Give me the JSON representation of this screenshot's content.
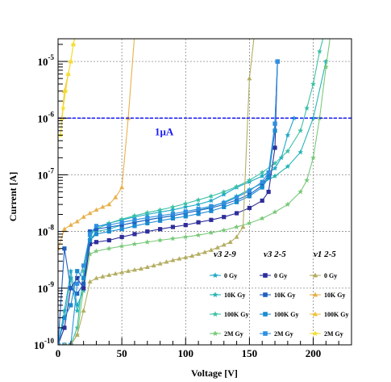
{
  "chart_data": {
    "type": "line",
    "xlabel": "Voltage [V]",
    "ylabel": "Current [A]",
    "xlim": [
      0,
      230
    ],
    "ylim_log10": [
      -10,
      -4.6
    ],
    "y_scale": "log",
    "x_ticks": [
      "0",
      "50",
      "100",
      "150",
      "200"
    ],
    "y_ticks": [
      "10^-10",
      "10^-9",
      "10^-8",
      "10^-7",
      "10^-6",
      "10^-5"
    ],
    "grid": true,
    "reference_line": {
      "y": 1e-06,
      "label": "1μA",
      "color": "#1a1aff"
    },
    "legend_columns": [
      {
        "heading": "v3 2-9",
        "entries": [
          "0 Gy",
          "10K Gy",
          "100K Gy",
          "2M Gy"
        ]
      },
      {
        "heading": "v3 2-5",
        "entries": [
          "0 Gy",
          "10K Gy",
          "100K Gy",
          "2M Gy"
        ]
      },
      {
        "heading": "v1 2-5",
        "entries": [
          "0 Gy",
          "10K Gy",
          "100K Gy",
          "2M Gy"
        ]
      }
    ],
    "series": [
      {
        "group": "v3 2-9",
        "label": "0 Gy",
        "color": "#1fa8c8",
        "marker": "star",
        "x": [
          0,
          5,
          10,
          15,
          20,
          25,
          30,
          40,
          50,
          60,
          70,
          80,
          90,
          100,
          110,
          120,
          130,
          140,
          150,
          160,
          170,
          175,
          180,
          185
        ],
        "y": [
          1e-10,
          4e-10,
          2e-09,
          5e-10,
          9e-10,
          8e-09,
          1.2e-08,
          1.4e-08,
          1.6e-08,
          1.8e-08,
          2e-08,
          2.2e-08,
          2.4e-08,
          2.7e-08,
          3e-08,
          3.5e-08,
          4.5e-08,
          6e-08,
          7.5e-08,
          9.5e-08,
          1.3e-07,
          2e-07,
          5e-07,
          1e-06
        ]
      },
      {
        "group": "v3 2-9",
        "label": "10K Gy",
        "color": "#26b5b5",
        "marker": "star",
        "x": [
          0,
          5,
          10,
          15,
          20,
          25,
          30,
          40,
          50,
          60,
          70,
          80,
          90,
          100,
          110,
          120,
          130,
          140,
          150,
          160,
          170,
          180,
          190,
          200,
          210
        ],
        "y": [
          1e-10,
          3e-10,
          1.5e-09,
          4e-10,
          1e-09,
          7e-09,
          1e-08,
          1.1e-08,
          1.3e-08,
          1.45e-08,
          1.6e-08,
          1.75e-08,
          1.9e-08,
          2.1e-08,
          2.35e-08,
          2.7e-08,
          3.3e-08,
          4.2e-08,
          5.5e-08,
          7e-08,
          9.5e-08,
          1.4e-07,
          2.5e-07,
          1e-06,
          1e-05
        ]
      },
      {
        "group": "v3 2-9",
        "label": "100K Gy",
        "color": "#3cc1a5",
        "marker": "star",
        "x": [
          0,
          5,
          10,
          15,
          20,
          25,
          30,
          40,
          50,
          60,
          70,
          80,
          90,
          100,
          110,
          120,
          130,
          140,
          150,
          160,
          170,
          180,
          190,
          195,
          200,
          205,
          210
        ],
        "y": [
          1e-10,
          1e-10,
          1e-10,
          2e-10,
          2e-09,
          9e-09,
          1.1e-08,
          1.4e-08,
          1.65e-08,
          1.9e-08,
          2.15e-08,
          2.4e-08,
          2.7e-08,
          3.1e-08,
          3.6e-08,
          4.2e-08,
          5e-08,
          6.2e-08,
          8e-08,
          1.1e-07,
          1.6e-07,
          2.6e-07,
          6e-07,
          1.5e-06,
          4e-06,
          1.5e-05,
          4e-05
        ]
      },
      {
        "group": "v3 2-9",
        "label": "2M Gy",
        "color": "#7ac97a",
        "marker": "star",
        "x": [
          0,
          5,
          10,
          15,
          20,
          25,
          30,
          40,
          50,
          60,
          70,
          80,
          90,
          100,
          110,
          120,
          130,
          140,
          150,
          160,
          170,
          180,
          190,
          195,
          200,
          205,
          210,
          215
        ],
        "y": [
          1e-10,
          1e-10,
          1e-10,
          1.5e-10,
          1e-09,
          4e-09,
          4.5e-09,
          5e-09,
          5.5e-09,
          6e-09,
          6.5e-09,
          7e-09,
          7.5e-09,
          8e-09,
          8.6e-09,
          9.5e-09,
          1.05e-08,
          1.2e-08,
          1.4e-08,
          1.7e-08,
          2.2e-08,
          3e-08,
          5e-08,
          8e-08,
          2e-07,
          1e-06,
          8e-06,
          5e-05
        ]
      },
      {
        "group": "v3 2-5",
        "label": "0 Gy",
        "color": "#2e2e9a",
        "marker": "square",
        "x": [
          0,
          5,
          10,
          15,
          20,
          25,
          30,
          40,
          50,
          60,
          70,
          80,
          90,
          100,
          110,
          120,
          130,
          140,
          150,
          160,
          165,
          170,
          172
        ],
        "y": [
          1e-10,
          2e-10,
          1e-09,
          1.5e-09,
          1e-09,
          6e-09,
          6.5e-09,
          7e-09,
          8e-09,
          9e-09,
          1e-08,
          1.1e-08,
          1.2e-08,
          1.3e-08,
          1.45e-08,
          1.6e-08,
          1.8e-08,
          2.1e-08,
          2.6e-08,
          3.5e-08,
          5e-08,
          3e-07,
          1e-05
        ]
      },
      {
        "group": "v3 2-5",
        "label": "10K Gy",
        "color": "#1e5fc0",
        "marker": "square",
        "x": [
          0,
          5,
          10,
          15,
          20,
          25,
          30,
          40,
          50,
          60,
          70,
          80,
          90,
          100,
          110,
          120,
          130,
          140,
          150,
          160,
          165,
          170,
          172
        ],
        "y": [
          1e-10,
          5e-09,
          1e-09,
          8e-10,
          1.2e-09,
          1e-08,
          1.1e-08,
          1.2e-08,
          1.3e-08,
          1.45e-08,
          1.6e-08,
          1.75e-08,
          1.9e-08,
          2.1e-08,
          2.35e-08,
          2.6e-08,
          3e-08,
          3.6e-08,
          4.5e-08,
          6.5e-08,
          1e-07,
          8e-07,
          1e-05
        ]
      },
      {
        "group": "v3 2-5",
        "label": "100K Gy",
        "color": "#1a8ad0",
        "marker": "square",
        "x": [
          0,
          5,
          10,
          15,
          20,
          25,
          30,
          40,
          50,
          60,
          70,
          80,
          90,
          100,
          110,
          120,
          130,
          140,
          150,
          160,
          165,
          170,
          172
        ],
        "y": [
          1e-10,
          3e-10,
          5e-10,
          2e-09,
          1.5e-09,
          7e-09,
          9e-09,
          1e-08,
          1.1e-08,
          1.25e-08,
          1.4e-08,
          1.55e-08,
          1.7e-08,
          1.85e-08,
          2.05e-08,
          2.3e-08,
          2.7e-08,
          3.3e-08,
          4.2e-08,
          6e-08,
          9e-08,
          6e-07,
          1e-05
        ]
      },
      {
        "group": "v3 2-5",
        "label": "2M Gy",
        "color": "#2f8fe0",
        "marker": "square",
        "x": [
          0,
          5,
          10,
          15,
          20,
          25,
          30,
          40,
          50,
          60,
          70,
          80,
          90,
          100,
          110,
          120,
          130,
          140,
          150,
          160,
          165,
          170,
          172
        ],
        "y": [
          1e-10,
          1e-10,
          1e-10,
          1.2e-09,
          2.5e-09,
          9e-09,
          1.25e-08,
          1.3e-08,
          1.45e-08,
          1.6e-08,
          1.75e-08,
          1.9e-08,
          2.05e-08,
          2.25e-08,
          2.5e-08,
          2.8e-08,
          3.2e-08,
          4e-08,
          5.2e-08,
          7.5e-08,
          1.1e-07,
          8e-07,
          1e-05
        ]
      },
      {
        "group": "v1 2-5",
        "label": "0 Gy",
        "color": "#b5ad62",
        "marker": "triangle",
        "x": [
          0,
          5,
          10,
          15,
          20,
          25,
          30,
          35,
          40,
          45,
          50,
          55,
          60,
          65,
          70,
          75,
          80,
          85,
          90,
          95,
          100,
          105,
          110,
          115,
          120,
          125,
          130,
          135,
          140,
          145,
          150,
          155,
          160
        ],
        "y": [
          1e-10,
          1e-10,
          1e-10,
          1.5e-10,
          4e-10,
          1.3e-09,
          1.5e-09,
          1.6e-09,
          1.7e-09,
          1.8e-09,
          1.9e-09,
          2e-09,
          2.1e-09,
          2.2e-09,
          2.35e-09,
          2.5e-09,
          2.7e-09,
          2.9e-09,
          3.1e-09,
          3.3e-09,
          3.5e-09,
          3.7e-09,
          4e-09,
          4.3e-09,
          4.7e-09,
          5.2e-09,
          5.8e-09,
          6.5e-09,
          8e-09,
          1.2e-08,
          5e-06,
          5e-05,
          8e-05
        ]
      },
      {
        "group": "v1 2-5",
        "label": "10K Gy",
        "color": "#e8b04a",
        "marker": "triangle",
        "x": [
          0,
          5,
          10,
          15,
          20,
          25,
          30,
          35,
          40,
          45,
          50,
          55,
          60,
          65
        ],
        "y": [
          5e-09,
          1.1e-08,
          1.3e-08,
          1.5e-08,
          1.8e-08,
          2.1e-08,
          2.4e-08,
          2.7e-08,
          3e-08,
          4e-08,
          6e-08,
          1e-06,
          3e-05,
          6e-05
        ]
      },
      {
        "group": "v1 2-5",
        "label": "100K Gy",
        "color": "#f0c43c",
        "marker": "triangle",
        "x": [
          3,
          5,
          8,
          10,
          12,
          15,
          17
        ],
        "y": [
          1e-06,
          3e-06,
          6e-06,
          1e-05,
          2e-05,
          4e-05,
          6e-05
        ]
      },
      {
        "group": "v1 2-5",
        "label": "2M Gy",
        "color": "#f5e030",
        "marker": "star",
        "x": [
          2,
          4,
          6,
          8,
          10,
          12,
          15,
          18
        ],
        "y": [
          5e-07,
          1.5e-06,
          3e-06,
          6e-06,
          1e-05,
          2e-05,
          5e-05,
          8e-05
        ]
      }
    ]
  }
}
